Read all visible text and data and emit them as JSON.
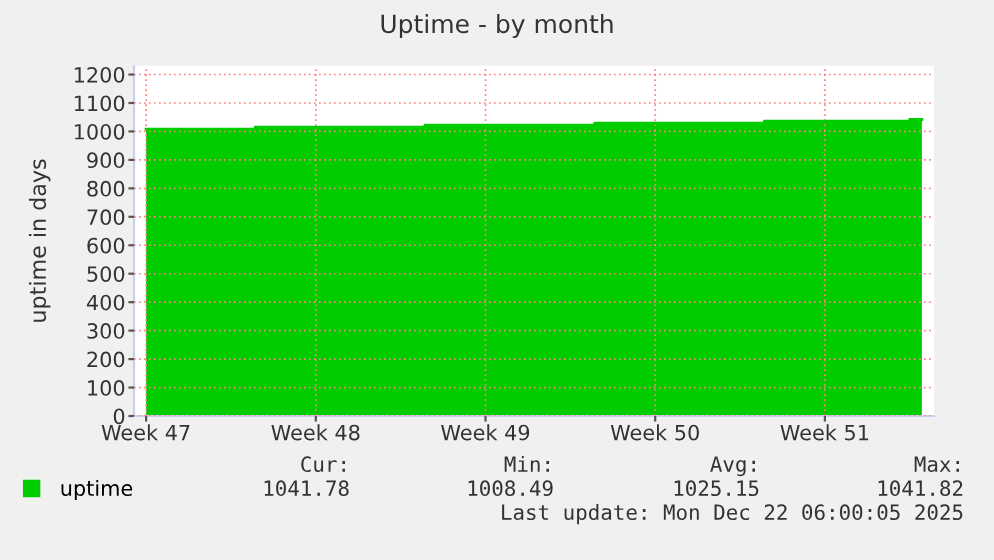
{
  "chart_data": {
    "type": "area",
    "title": "Uptime - by month",
    "ylabel": "uptime in days",
    "categories": [
      "Week 47",
      null,
      null,
      null,
      null,
      null,
      null,
      "Week 48",
      null,
      null,
      null,
      null,
      null,
      null,
      "Week 49",
      null,
      null,
      null,
      null,
      null,
      null,
      "Week 50",
      null,
      null,
      null,
      null,
      null,
      null,
      "Week 51",
      null,
      null,
      null,
      null
    ],
    "series": [
      {
        "name": "uptime",
        "color": "#00cc00",
        "values": [
          1008,
          1008,
          1008,
          1008,
          1008,
          1015,
          1015,
          1015,
          1015,
          1015,
          1015,
          1015,
          1022,
          1022,
          1022,
          1022,
          1022,
          1022,
          1022,
          1029,
          1029,
          1029,
          1029,
          1029,
          1029,
          1029,
          1036,
          1036,
          1036,
          1036,
          1036,
          1036,
          1042
        ]
      }
    ],
    "ylim": [
      0,
      1230
    ],
    "yticks": [
      0,
      100,
      200,
      300,
      400,
      500,
      600,
      700,
      800,
      900,
      1000,
      1100,
      1200
    ],
    "grid": true,
    "legend": "bottom left",
    "annotations": [
      "Cur:",
      "Min:",
      "Avg:",
      "Max:",
      "1041.78",
      "1008.49",
      "1025.15",
      "1041.82",
      "Last update: Mon Dec 22 06:00:05 2025"
    ]
  }
}
